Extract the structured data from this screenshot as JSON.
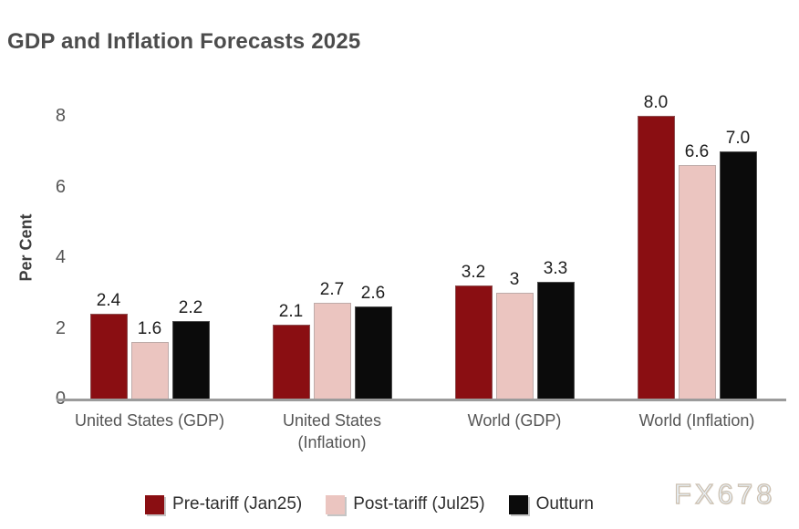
{
  "title": "GDP and Inflation Forecasts 2025",
  "watermark": "FX678",
  "colors": {
    "pre_tariff": "#8a0e12",
    "post_tariff": "#ebc5c0",
    "outturn": "#0b0b0b",
    "axis_line": "#9b9b9b",
    "title_text": "#4c4c4c",
    "tick_text": "#565656"
  },
  "chart_data": {
    "type": "bar",
    "title": "GDP and Inflation Forecasts 2025",
    "xlabel": "",
    "ylabel": "Per Cent",
    "ylim": [
      0,
      8
    ],
    "yticks": [
      "0",
      "2",
      "4",
      "6",
      "8"
    ],
    "grid": false,
    "legend_position": "bottom",
    "categories": [
      "United States (GDP)",
      "United States\n(Inflation)",
      "World (GDP)",
      "World (Inflation)"
    ],
    "series": [
      {
        "name": "Pre-tariff (Jan25)",
        "color": "#8a0e12",
        "values": [
          2.4,
          2.1,
          3.2,
          8.0
        ],
        "value_labels": [
          "2.4",
          "2.1",
          "3.2",
          "8.0"
        ]
      },
      {
        "name": "Post-tariff (Jul25)",
        "color": "#ebc5c0",
        "values": [
          1.6,
          2.7,
          3.0,
          6.6
        ],
        "value_labels": [
          "1.6",
          "2.7",
          "3",
          "6.6"
        ]
      },
      {
        "name": "Outturn",
        "color": "#0b0b0b",
        "values": [
          2.2,
          2.6,
          3.3,
          7.0
        ],
        "value_labels": [
          "2.2",
          "2.6",
          "3.3",
          "7.0"
        ]
      }
    ]
  }
}
